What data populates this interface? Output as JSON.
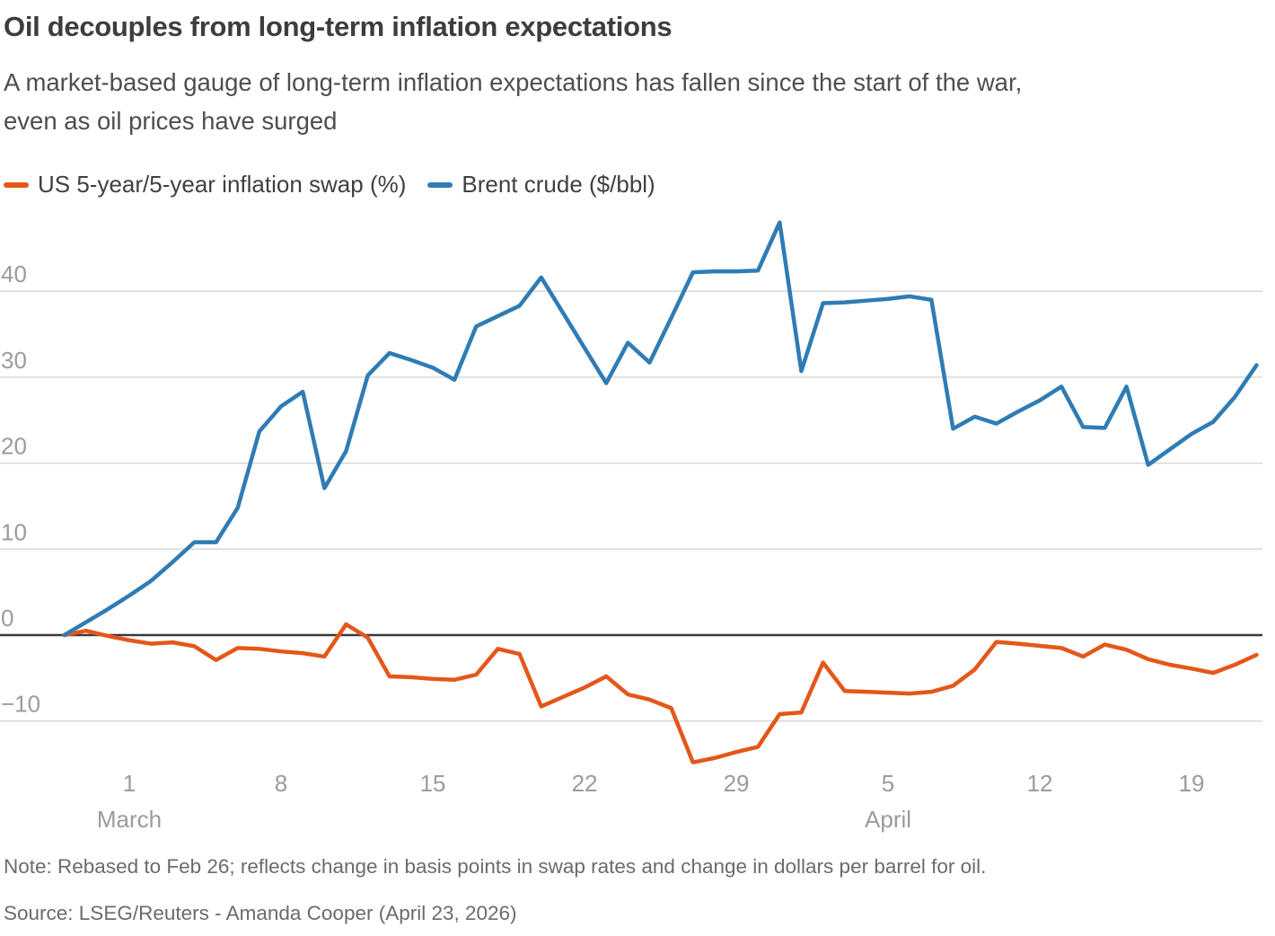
{
  "header": {
    "title": "Oil decouples from long-term inflation expectations",
    "subtitle_line1": "A market-based gauge of long-term inflation expectations has fallen since the start of the war,",
    "subtitle_line2": "even as oil prices have surged"
  },
  "legend": [
    {
      "label": "US 5-year/5-year inflation swap (%)",
      "color": "#e4571a"
    },
    {
      "label": "Brent crude ($/bbl)",
      "color": "#2f7cb5"
    }
  ],
  "chart_data": {
    "type": "line",
    "title": "Oil decouples from long-term inflation expectations",
    "x_dates": [
      "Feb 26",
      "Feb 27",
      "Feb 28",
      "Mar 1",
      "Mar 2",
      "Mar 3",
      "Mar 4",
      "Mar 5",
      "Mar 6",
      "Mar 7",
      "Mar 8",
      "Mar 9",
      "Mar 10",
      "Mar 11",
      "Mar 12",
      "Mar 13",
      "Mar 14",
      "Mar 15",
      "Mar 16",
      "Mar 17",
      "Mar 18",
      "Mar 19",
      "Mar 20",
      "Mar 21",
      "Mar 22",
      "Mar 23",
      "Mar 24",
      "Mar 25",
      "Mar 26",
      "Mar 27",
      "Mar 28",
      "Mar 29",
      "Mar 30",
      "Mar 31",
      "Apr 1",
      "Apr 2",
      "Apr 3",
      "Apr 4",
      "Apr 5",
      "Apr 6",
      "Apr 7",
      "Apr 8",
      "Apr 9",
      "Apr 10",
      "Apr 11",
      "Apr 12",
      "Apr 13",
      "Apr 14",
      "Apr 15",
      "Apr 16",
      "Apr 17",
      "Apr 18",
      "Apr 19",
      "Apr 20",
      "Apr 21",
      "Apr 22"
    ],
    "series": [
      {
        "id": "swap-line",
        "name": "US 5-year/5-year inflation swap (%)",
        "color": "#e4571a",
        "values": [
          0,
          0.5,
          -0.1,
          -0.6,
          -1.0,
          -0.85,
          -1.3,
          -2.9,
          -1.5,
          -1.6,
          -1.9,
          -2.1,
          -2.5,
          1.25,
          -0.3,
          -4.8,
          -4.9,
          -5.1,
          -5.2,
          -4.6,
          -1.6,
          -2.2,
          -8.3,
          -7.2,
          -6.1,
          -4.8,
          -6.9,
          -7.5,
          -8.5,
          -14.8,
          -14.3,
          -13.6,
          -13.0,
          -9.2,
          -9.0,
          -3.2,
          -6.5,
          -6.6,
          -6.7,
          -6.8,
          -6.6,
          -5.9,
          -4.0,
          -0.8,
          -1.0,
          -1.25,
          -1.5,
          -2.5,
          -1.1,
          -1.7,
          -2.8,
          -3.45,
          -3.9,
          -4.4,
          -3.45,
          -2.3
        ]
      },
      {
        "id": "brent-line",
        "name": "Brent crude ($/bbl)",
        "color": "#2f7cb5",
        "values": [
          0,
          1.5,
          3.0,
          4.6,
          6.3,
          8.5,
          10.8,
          10.8,
          14.8,
          23.7,
          26.6,
          28.3,
          17.1,
          21.4,
          30.2,
          32.8,
          32.0,
          31.1,
          29.7,
          35.9,
          37.1,
          38.3,
          41.6,
          37.5,
          33.4,
          29.3,
          34.0,
          31.7,
          36.9,
          42.2,
          42.3,
          42.3,
          42.4,
          48.0,
          30.7,
          38.6,
          38.7,
          38.9,
          39.1,
          39.4,
          39.0,
          24.0,
          25.4,
          24.6,
          26.0,
          27.3,
          28.9,
          24.2,
          24.1,
          28.9,
          19.8,
          21.6,
          23.4,
          24.8,
          27.7,
          31.4
        ]
      }
    ],
    "y_axis": {
      "ticks": [
        {
          "value": 40,
          "label": "40"
        },
        {
          "value": 30,
          "label": "30"
        },
        {
          "value": 20,
          "label": "20"
        },
        {
          "value": 10,
          "label": "10"
        },
        {
          "value": 0,
          "label": "0"
        },
        {
          "value": -10,
          "label": "−10"
        }
      ],
      "range": [
        -17,
        49
      ],
      "grid": true,
      "zero_line": true
    },
    "x_axis": {
      "ticks": [
        {
          "label": "1",
          "day_index": 3
        },
        {
          "label": "8",
          "day_index": 10
        },
        {
          "label": "15",
          "day_index": 17
        },
        {
          "label": "22",
          "day_index": 24
        },
        {
          "label": "29",
          "day_index": 31
        },
        {
          "label": "5",
          "day_index": 38
        },
        {
          "label": "12",
          "day_index": 45
        },
        {
          "label": "19",
          "day_index": 52
        }
      ],
      "month_labels": [
        {
          "label": "March",
          "day_index": 3
        },
        {
          "label": "April",
          "day_index": 38
        }
      ]
    },
    "legend_position": "top-left",
    "colors": {
      "grid": "#d9d9d9",
      "zero_line": "#3a3a3a",
      "axis_label": "#9b9b9b"
    }
  },
  "footer": {
    "note": "Note: Rebased to Feb 26; reflects change in basis points in swap rates and change in dollars per barrel for oil.",
    "source": "Source: LSEG/Reuters - Amanda Cooper (April 23, 2026)"
  }
}
